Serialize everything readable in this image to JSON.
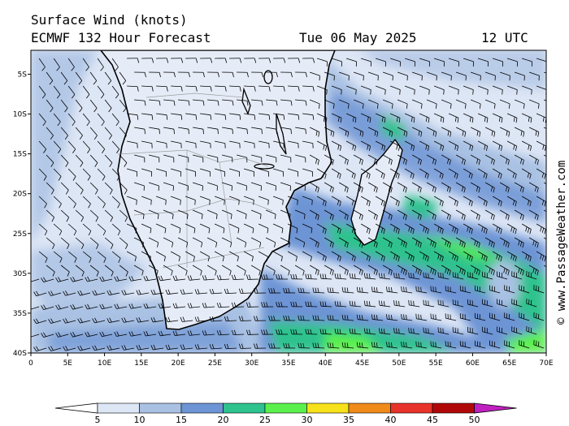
{
  "header": {
    "title": "Surface Wind (knots)",
    "model_line": "ECMWF 132 Hour Forecast",
    "date": "Tue 06 May 2025",
    "time": "12 UTC"
  },
  "map": {
    "lat_labels": [
      "5S",
      "10S",
      "15S",
      "20S",
      "25S",
      "30S",
      "35S",
      "40S"
    ],
    "lon_labels": [
      "0",
      "5E",
      "10E",
      "15E",
      "20E",
      "25E",
      "30E",
      "35E",
      "40E",
      "45E",
      "50E",
      "55E",
      "60E",
      "65E",
      "70E"
    ],
    "lat_range": [
      -2,
      -40
    ],
    "lon_range": [
      0,
      70
    ]
  },
  "colorbar": {
    "ticks": [
      "5",
      "10",
      "15",
      "20",
      "25",
      "30",
      "35",
      "40",
      "45",
      "50"
    ],
    "colors": [
      "#ffffff",
      "#dde6f5",
      "#a9c1e3",
      "#6d94d4",
      "#2ec28e",
      "#5cf04c",
      "#f7e11a",
      "#f08a1a",
      "#e8332a",
      "#b00808",
      "#c020c0"
    ]
  },
  "copyright": "© www.PassageWeather.com",
  "colors": {
    "calm": "#dde6f5",
    "light": "#a9c1e3",
    "moderate": "#6d94d4",
    "fresh": "#2ec28e",
    "strong": "#5cf04c",
    "land_outline": "#000000"
  }
}
